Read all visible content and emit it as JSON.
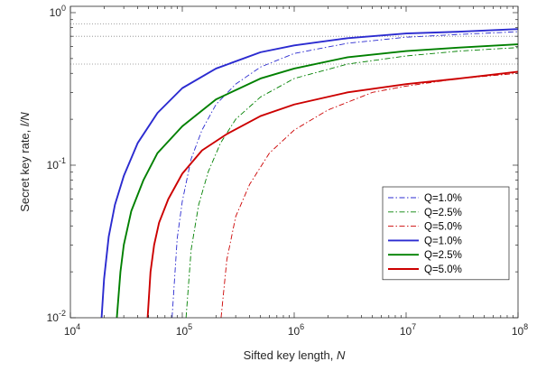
{
  "chart_data": {
    "type": "line",
    "xscale": "log",
    "yscale": "log",
    "xlim": [
      10000,
      100000000
    ],
    "ylim": [
      0.01,
      1.1
    ],
    "xticks": [
      {
        "value": 10000,
        "base": "10",
        "exp": "4"
      },
      {
        "value": 100000,
        "base": "10",
        "exp": "5"
      },
      {
        "value": 1000000,
        "base": "10",
        "exp": "6"
      },
      {
        "value": 10000000,
        "base": "10",
        "exp": "7"
      },
      {
        "value": 100000000,
        "base": "10",
        "exp": "8"
      }
    ],
    "yticks": [
      {
        "value": 0.01,
        "base": "10",
        "exp": "-2"
      },
      {
        "value": 0.1,
        "base": "10",
        "exp": "-1"
      },
      {
        "value": 1,
        "base": "10",
        "exp": "0"
      }
    ],
    "xlabel": {
      "text": "Sifted key length, ",
      "italic": "N"
    },
    "ylabel": {
      "text": "Secret key rate, ",
      "italic": "l/N"
    },
    "grid": false,
    "legend_position": "bottom-right",
    "reference_lines": [
      {
        "y": 0.845,
        "color": "#888888",
        "style": "dotted"
      },
      {
        "y": 0.7,
        "color": "#888888",
        "style": "dotted"
      },
      {
        "y": 0.46,
        "color": "#888888",
        "style": "dotted"
      }
    ],
    "series": [
      {
        "name": "Q=1.0%",
        "color": "#2b2bd0",
        "style": "dashdot",
        "width": 0.9,
        "x": [
          81000,
          90000,
          100000,
          120000,
          150000,
          200000,
          300000,
          500000,
          1000000,
          3000000,
          10000000,
          30000000,
          100000000
        ],
        "y": [
          0.01,
          0.033,
          0.058,
          0.11,
          0.17,
          0.25,
          0.34,
          0.44,
          0.54,
          0.63,
          0.69,
          0.72,
          0.75
        ]
      },
      {
        "name": "Q=2.5%",
        "color": "#008000",
        "style": "dashdot",
        "width": 0.9,
        "x": [
          108000,
          120000,
          140000,
          170000,
          220000,
          300000,
          500000,
          1000000,
          3000000,
          10000000,
          30000000,
          100000000
        ],
        "y": [
          0.01,
          0.028,
          0.055,
          0.09,
          0.14,
          0.2,
          0.28,
          0.37,
          0.46,
          0.52,
          0.56,
          0.59
        ]
      },
      {
        "name": "Q=5.0%",
        "color": "#cc0000",
        "style": "dashdot",
        "width": 0.9,
        "x": [
          222000,
          250000,
          300000,
          400000,
          600000,
          1000000,
          2000000,
          5000000,
          10000000,
          30000000,
          100000000
        ],
        "y": [
          0.01,
          0.024,
          0.046,
          0.075,
          0.12,
          0.17,
          0.23,
          0.3,
          0.33,
          0.37,
          0.4
        ]
      },
      {
        "name": "Q=1.0%",
        "color": "#2b2bd0",
        "style": "solid",
        "width": 1.9,
        "x": [
          19000,
          20000,
          22000,
          25000,
          30000,
          40000,
          60000,
          100000,
          200000,
          500000,
          1000000,
          3000000,
          10000000,
          30000000,
          100000000
        ],
        "y": [
          0.01,
          0.018,
          0.034,
          0.055,
          0.085,
          0.14,
          0.22,
          0.32,
          0.43,
          0.55,
          0.61,
          0.68,
          0.73,
          0.75,
          0.78
        ]
      },
      {
        "name": "Q=2.5%",
        "color": "#008000",
        "style": "solid",
        "width": 1.9,
        "x": [
          26000,
          28000,
          30000,
          35000,
          45000,
          60000,
          100000,
          200000,
          500000,
          1000000,
          3000000,
          10000000,
          30000000,
          100000000
        ],
        "y": [
          0.01,
          0.02,
          0.03,
          0.05,
          0.08,
          0.12,
          0.18,
          0.27,
          0.37,
          0.43,
          0.51,
          0.56,
          0.59,
          0.62
        ]
      },
      {
        "name": "Q=5.0%",
        "color": "#cc0000",
        "style": "solid",
        "width": 1.9,
        "x": [
          49000,
          52000,
          56000,
          62000,
          75000,
          100000,
          150000,
          250000,
          500000,
          1000000,
          3000000,
          10000000,
          30000000,
          100000000
        ],
        "y": [
          0.01,
          0.02,
          0.03,
          0.042,
          0.06,
          0.088,
          0.125,
          0.16,
          0.21,
          0.25,
          0.3,
          0.34,
          0.37,
          0.41
        ]
      }
    ]
  }
}
